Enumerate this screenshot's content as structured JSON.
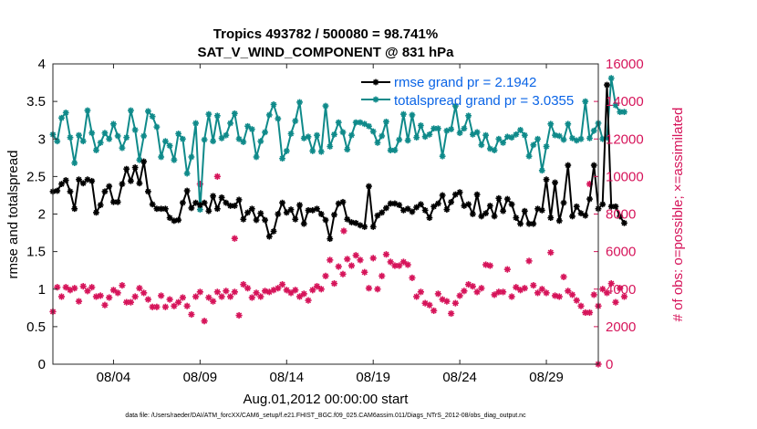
{
  "colors": {
    "rmse": "#000000",
    "spread": "#0f8a8a",
    "obs": "#d6145a",
    "legend_text": "#0a64e6"
  },
  "chart_data": {
    "type": "line",
    "title_line1": "Tropics 493782 / 500080 = 98.741%",
    "title_line2": "SAT_V_WIND_COMPONENT @ 831 hPa",
    "xlabel": "Aug.01,2012 00:00:00 start",
    "ylabel_left": "rmse and totalspread",
    "ylabel_right": "# of obs: o=possible; ×=assimilated",
    "footnote": "data file: /Users/raeder/DAI/ATM_forcXX/CAM6_setup/f.e21.FHIST_BGC.f09_025.CAM6assim.011/Diags_NTrS_2012-08/obs_diag_output.nc",
    "xlim": [
      0.5,
      32
    ],
    "ylim_left": [
      0,
      4
    ],
    "ylim_right": [
      0,
      16000
    ],
    "x_ticks": [
      {
        "value": 4,
        "label": "08/04"
      },
      {
        "value": 9,
        "label": "08/09"
      },
      {
        "value": 14,
        "label": "08/14"
      },
      {
        "value": 19,
        "label": "08/19"
      },
      {
        "value": 24,
        "label": "08/24"
      },
      {
        "value": 29,
        "label": "08/29"
      }
    ],
    "y_ticks_left": [
      "0",
      "0.5",
      "1",
      "1.5",
      "2",
      "2.5",
      "3",
      "3.5",
      "4"
    ],
    "y_ticks_right": [
      "0",
      "2000",
      "4000",
      "6000",
      "8000",
      "10000",
      "12000",
      "14000",
      "16000"
    ],
    "y_tick_values_left": [
      0,
      0.5,
      1,
      1.5,
      2,
      2.5,
      3,
      3.5,
      4
    ],
    "y_tick_values_right": [
      0,
      2000,
      4000,
      6000,
      8000,
      10000,
      12000,
      14000,
      16000
    ],
    "x_start": 0.5,
    "x_step": 0.25,
    "legend": [
      {
        "label": "rmse grand pr = 2.1942",
        "series": "rmse"
      },
      {
        "label": "totalspread grand pr = 3.0355",
        "series": "spread"
      }
    ],
    "series": [
      {
        "name": "rmse",
        "values": [
          2.3,
          2.31,
          2.4,
          2.45,
          2.3,
          2.07,
          2.46,
          2.41,
          2.46,
          2.44,
          2.02,
          2.12,
          2.3,
          2.37,
          2.16,
          2.16,
          2.4,
          2.6,
          2.44,
          2.62,
          2.41,
          2.7,
          2.3,
          2.13,
          2.07,
          2.07,
          2.07,
          1.95,
          1.91,
          1.92,
          2.15,
          2.31,
          2.08,
          2.15,
          2.12,
          2.15,
          2.04,
          2.24,
          2.07,
          2.22,
          2.15,
          2.11,
          2.11,
          2.19,
          1.93,
          2.02,
          2.07,
          1.92,
          2.01,
          1.92,
          1.7,
          1.77,
          2.0,
          2.15,
          2.02,
          2.06,
          1.93,
          2.12,
          1.87,
          2.05,
          2.05,
          2.07,
          2.0,
          1.92,
          1.67,
          1.99,
          2.14,
          2.16,
          1.93,
          1.89,
          1.88,
          1.85,
          1.83,
          2.37,
          1.83,
          1.98,
          2.02,
          2.08,
          2.14,
          2.14,
          2.12,
          2.05,
          2.07,
          2.03,
          2.09,
          2.13,
          2.05,
          1.95,
          2.1,
          2.14,
          2.25,
          2.06,
          2.16,
          2.26,
          2.29,
          2.11,
          2.13,
          2.0,
          2.26,
          1.97,
          2.01,
          2.11,
          1.97,
          2.21,
          2.04,
          2.2,
          2.13,
          1.95,
          1.87,
          2.04,
          1.87,
          1.87,
          2.07,
          2.05,
          2.46,
          1.95,
          2.42,
          1.91,
          2.15,
          2.65,
          1.97,
          2.1,
          2.01,
          1.98,
          2.2,
          2.65,
          2.07,
          2.13,
          3.72,
          2.1,
          2.1,
          1.97,
          1.88
        ]
      },
      {
        "name": "spread",
        "values": [
          3.06,
          2.97,
          3.28,
          3.35,
          3.02,
          2.68,
          3.05,
          2.97,
          3.38,
          3.08,
          2.85,
          2.95,
          3.08,
          3.0,
          3.2,
          3.04,
          2.88,
          3.02,
          3.38,
          3.12,
          2.72,
          3.04,
          3.37,
          3.3,
          3.16,
          2.76,
          2.97,
          2.91,
          2.72,
          3.07,
          3.0,
          2.54,
          2.76,
          3.21,
          2.06,
          2.99,
          3.33,
          2.97,
          3.31,
          3.01,
          3.05,
          3.21,
          3.34,
          3.0,
          2.96,
          3.17,
          3.13,
          2.76,
          2.97,
          3.09,
          3.32,
          3.46,
          3.27,
          2.74,
          2.84,
          3.07,
          3.24,
          3.49,
          3.01,
          3.03,
          2.84,
          3.05,
          2.83,
          3.44,
          2.9,
          3.06,
          3.22,
          3.09,
          2.86,
          3.05,
          3.22,
          3.22,
          3.2,
          3.17,
          3.1,
          2.95,
          3.04,
          3.23,
          2.85,
          2.85,
          2.99,
          3.33,
          2.98,
          3.32,
          3.02,
          3.18,
          3.03,
          3.06,
          3.14,
          3.14,
          2.77,
          3.11,
          3.13,
          3.44,
          3.08,
          3.14,
          3.31,
          3.06,
          3.09,
          2.92,
          3.05,
          2.87,
          2.85,
          3.0,
          2.95,
          3.03,
          3.02,
          3.06,
          3.12,
          3.05,
          2.77,
          2.92,
          3.0,
          2.58,
          2.9,
          3.2,
          3.05,
          3.04,
          2.99,
          3.2,
          3.01,
          2.98,
          3.0,
          3.5,
          3.01,
          3.11,
          3.21,
          3.0,
          3.02,
          3.81,
          3.45,
          3.36,
          3.36
        ]
      },
      {
        "name": "obs_possible",
        "values": [
          2800,
          4100,
          3600,
          4100,
          3950,
          4050,
          3350,
          4150,
          3900,
          4100,
          3600,
          3650,
          3150,
          3550,
          3950,
          3800,
          4200,
          3300,
          3300,
          3600,
          4050,
          3800,
          3450,
          3050,
          3050,
          3650,
          3050,
          3450,
          3100,
          3300,
          3550,
          3100,
          2650,
          3600,
          3850,
          2300,
          3550,
          3350,
          3850,
          3600,
          3900,
          3600,
          3850,
          2600,
          4250,
          4050,
          3550,
          3800,
          3600,
          3900,
          3850,
          3950,
          4050,
          4250,
          3950,
          3800,
          3950,
          3600,
          3750,
          3400,
          3950,
          4150,
          4000,
          4700,
          5550,
          4300,
          5200,
          4800,
          5600,
          5250,
          5800,
          5550,
          4900,
          4050,
          5650,
          4000,
          4700,
          5850,
          5450,
          5250,
          5250,
          5450,
          5300,
          4600,
          3600,
          3850,
          3250,
          3150,
          2850,
          3750,
          3450,
          3350,
          2700,
          3250,
          3650,
          3900,
          4250,
          4150,
          3850,
          4050,
          5300,
          5250,
          3700,
          3850,
          3850,
          5050,
          3600,
          4100,
          3950,
          4050,
          5500,
          4200,
          3800,
          4000,
          3800,
          5950,
          3650,
          3600,
          4650,
          3900,
          3700,
          3400,
          3100,
          2750,
          2750,
          3700,
          3100,
          4000,
          3800,
          4300,
          3300,
          4050,
          3600
        ]
      }
    ],
    "isolated_obs": [
      {
        "x": 9.0,
        "y": 9600
      },
      {
        "x": 10.0,
        "y": 10000
      },
      {
        "x": 17.3,
        "y": 7100
      },
      {
        "x": 11.0,
        "y": 6700
      },
      {
        "x": 31.5,
        "y": 9600
      },
      {
        "x": 32.0,
        "y": 0
      }
    ]
  }
}
